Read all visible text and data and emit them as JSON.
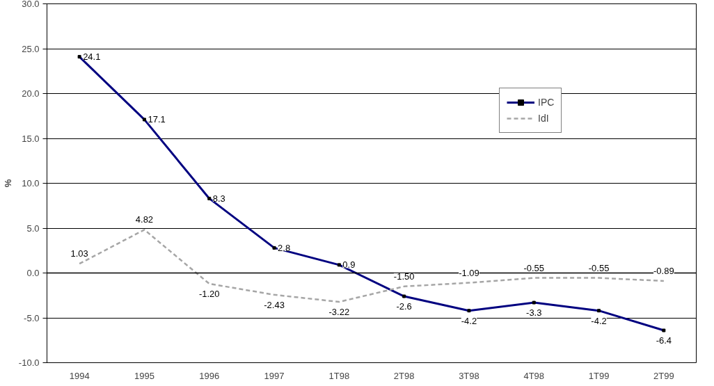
{
  "chart_data": {
    "type": "line",
    "ylabel": "%",
    "categories": [
      "1994",
      "1995",
      "1996",
      "1997",
      "1T98",
      "2T98",
      "3T98",
      "4T98",
      "1T99",
      "2T99"
    ],
    "series": [
      {
        "name": "IPC",
        "color": "#000080",
        "marker": "square",
        "line_style": "solid",
        "values": [
          24.1,
          17.1,
          8.3,
          2.8,
          0.9,
          -2.6,
          -4.2,
          -3.3,
          -4.2,
          -6.4
        ],
        "value_labels": [
          "24.1",
          "17.1",
          "8.3",
          "2.8",
          "0.9",
          "-2.6",
          "-4.2",
          "-3.3",
          "-4.2",
          "-6.4"
        ]
      },
      {
        "name": "IdI",
        "color": "#a6a6a6",
        "marker": "none",
        "line_style": "dashed",
        "values": [
          1.03,
          4.82,
          -1.2,
          -2.43,
          -3.22,
          -1.5,
          -1.09,
          -0.55,
          -0.55,
          -0.89
        ],
        "value_labels": [
          "1.03",
          "4.82",
          "-1.20",
          "-2.43",
          "-3.22",
          "-1.50",
          "-1.09",
          "-0.55",
          "-0.55",
          "-0.89"
        ]
      }
    ],
    "ylim": [
      -10,
      30
    ],
    "yticks": [
      {
        "value": -10,
        "label": "-10.0"
      },
      {
        "value": -5,
        "label": "-5.0"
      },
      {
        "value": 0,
        "label": "0.0"
      },
      {
        "value": 5,
        "label": "5.0"
      },
      {
        "value": 10,
        "label": "10.0"
      },
      {
        "value": 15,
        "label": "15.0"
      },
      {
        "value": 20,
        "label": "20.0"
      },
      {
        "value": 25,
        "label": "25.0"
      },
      {
        "value": 30,
        "label": "30.0"
      }
    ],
    "ref_lines": [
      {
        "axis": "y",
        "value": 0,
        "color": "#000000"
      }
    ],
    "grid": "y",
    "legend": "top right"
  }
}
